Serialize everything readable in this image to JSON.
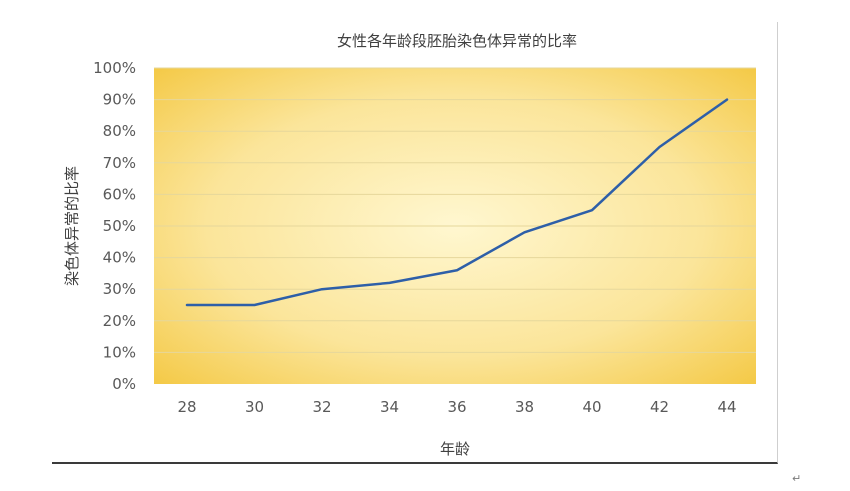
{
  "chart_data": {
    "type": "line",
    "title": "女性各年龄段胚胎染色体异常的比率",
    "xlabel": "年龄",
    "ylabel": "染色体异常的比率",
    "x": [
      28,
      30,
      32,
      34,
      36,
      38,
      40,
      42,
      44
    ],
    "x_tick_labels": [
      "28",
      "30",
      "32",
      "34",
      "36",
      "38",
      "40",
      "42",
      "44"
    ],
    "ylim": [
      0,
      100
    ],
    "y_ticks": [
      0,
      10,
      20,
      30,
      40,
      50,
      60,
      70,
      80,
      90,
      100
    ],
    "y_tick_labels": [
      "0%",
      "10%",
      "20%",
      "30%",
      "40%",
      "50%",
      "60%",
      "70%",
      "80%",
      "90%",
      "100%"
    ],
    "series": [
      {
        "values": [
          25,
          25,
          30,
          32,
          36,
          48,
          55,
          75,
          90
        ]
      }
    ],
    "grid": true,
    "legend": "none",
    "colors": {
      "line": "#2e5fa8",
      "plot_center": "#fff7d0",
      "plot_edge": "#f3c53a",
      "gridline": "#e6d79b"
    }
  },
  "page": {
    "return_mark": "↵"
  }
}
